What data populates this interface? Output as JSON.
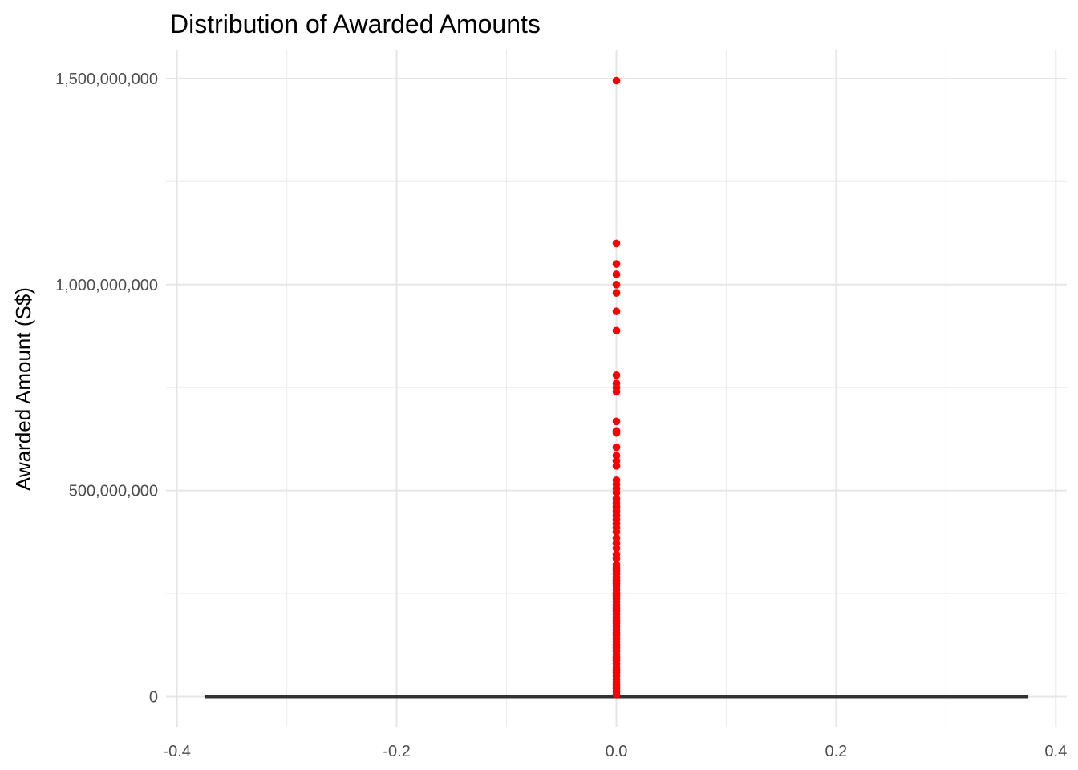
{
  "chart_data": {
    "type": "boxplot",
    "title": "Distribution of Awarded Amounts",
    "xlabel": "",
    "ylabel": "Awarded Amount (S$)",
    "xlim": [
      -0.41,
      0.41
    ],
    "ylim": [
      -75000000,
      1570000000
    ],
    "x_ticks": [
      {
        "value": -0.4,
        "label": "-0.4"
      },
      {
        "value": -0.2,
        "label": "-0.2"
      },
      {
        "value": 0.0,
        "label": "0.0"
      },
      {
        "value": 0.2,
        "label": "0.2"
      },
      {
        "value": 0.4,
        "label": "0.4"
      }
    ],
    "x_minor_ticks": [
      -0.3,
      -0.1,
      0.1,
      0.3
    ],
    "y_ticks": [
      {
        "value": 0,
        "label": "0"
      },
      {
        "value": 500000000,
        "label": "500,000,000"
      },
      {
        "value": 1000000000,
        "label": "1,000,000,000"
      },
      {
        "value": 1500000000,
        "label": "1,500,000,000"
      }
    ],
    "y_minor_ticks": [
      250000000,
      750000000,
      1250000000
    ],
    "grid": true,
    "box": {
      "x": 0,
      "xmin": -0.375,
      "xmax": 0.375,
      "q1": 0,
      "median": 0,
      "q3": 0,
      "whisker_low": 0,
      "whisker_high": 0,
      "color": "#333333"
    },
    "outlier_color": "#ff0000",
    "outliers": [
      1495000000,
      1100000000,
      1050000000,
      1025000000,
      1000000000,
      980000000,
      935000000,
      888000000,
      780000000,
      760000000,
      750000000,
      740000000,
      668000000,
      645000000,
      640000000,
      605000000,
      585000000,
      572000000,
      560000000,
      525000000,
      515000000,
      505000000,
      495000000,
      480000000,
      470000000,
      460000000,
      450000000,
      440000000,
      430000000,
      420000000,
      410000000,
      400000000,
      385000000,
      372000000,
      360000000,
      345000000,
      335000000,
      320000000,
      312000000,
      305000000,
      298000000,
      290000000,
      282000000,
      275000000,
      268000000,
      260000000,
      252000000,
      245000000,
      238000000,
      230000000,
      222000000,
      215000000,
      208000000,
      200000000,
      192000000,
      185000000,
      178000000,
      170000000,
      162000000,
      155000000,
      148000000,
      140000000,
      132000000,
      125000000,
      118000000,
      110000000,
      102000000,
      95000000,
      88000000,
      80000000,
      72000000,
      65000000,
      58000000,
      50000000,
      42000000,
      35000000,
      28000000,
      20000000,
      12000000,
      5000000
    ]
  }
}
